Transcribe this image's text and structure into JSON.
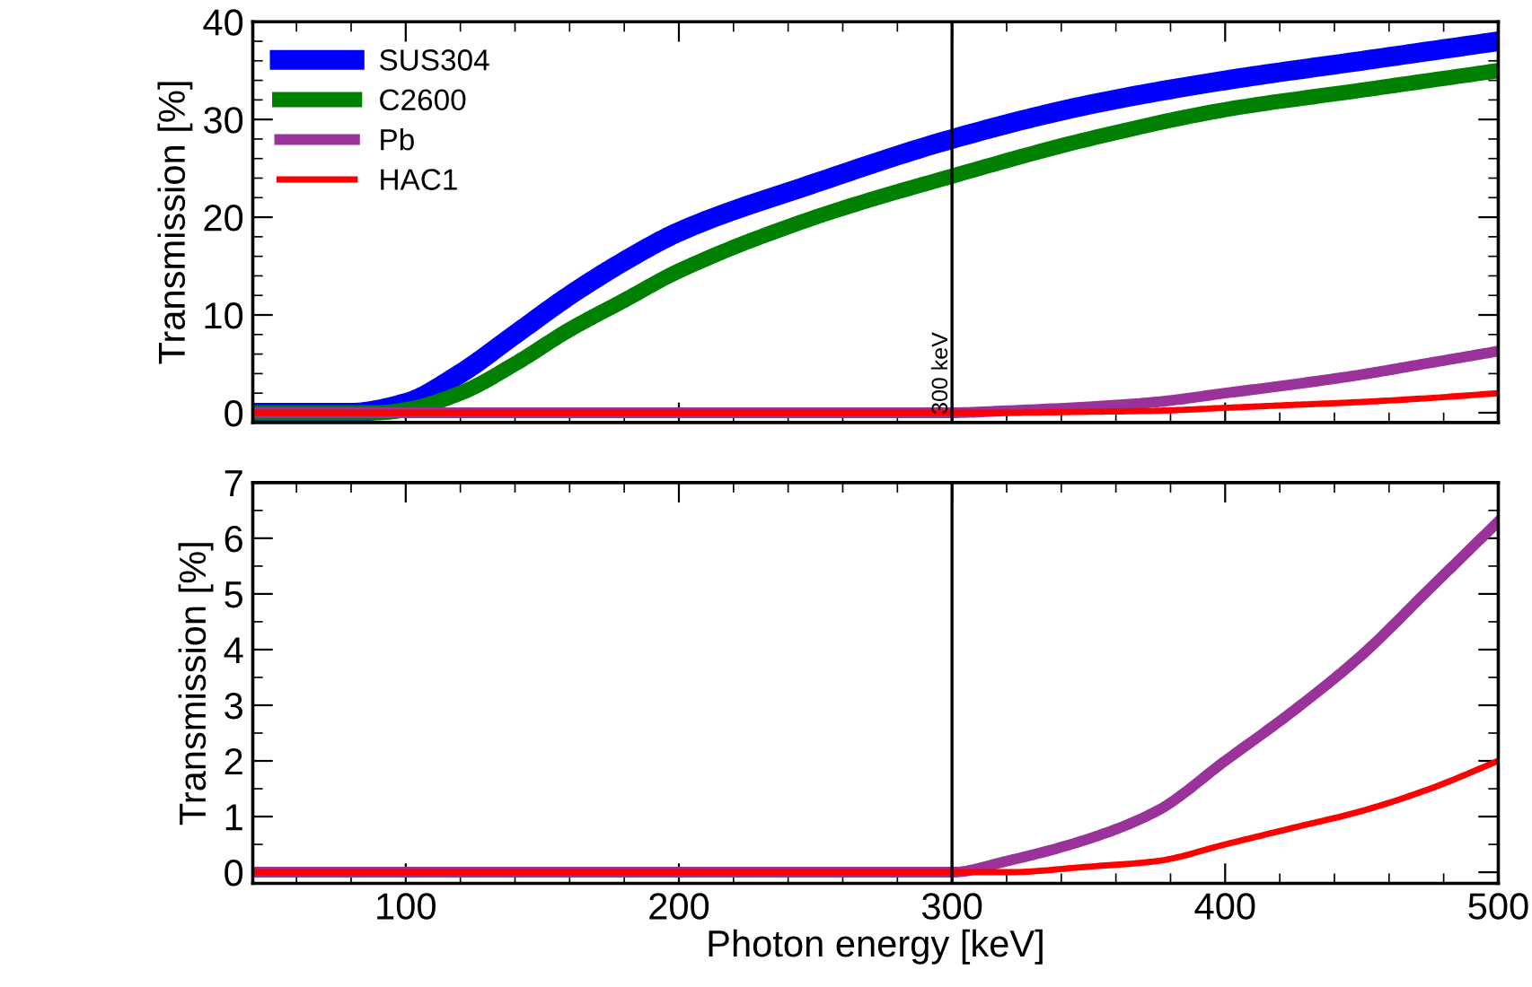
{
  "chart_data": [
    {
      "type": "line",
      "ylabel": "Transmission [%]",
      "xlim": [
        44,
        500
      ],
      "ylim": [
        -1,
        40
      ],
      "yticks": [
        0,
        10,
        20,
        30,
        40
      ],
      "xticks": [
        100,
        200,
        300,
        400,
        500
      ],
      "tick_labels": "y",
      "legend": "top left",
      "grid": false,
      "series": [
        {
          "name": "SUS304",
          "color": "#0000ff",
          "x": [
            44,
            80,
            100,
            120,
            140,
            160,
            180,
            200,
            250,
            300,
            350,
            400,
            450,
            500
          ],
          "values": [
            0,
            0,
            1,
            4,
            8,
            12,
            15.5,
            18.5,
            23.5,
            28,
            31.5,
            34,
            36,
            38
          ]
        },
        {
          "name": "C2600",
          "color": "#008000",
          "x": [
            44,
            90,
            100,
            120,
            140,
            160,
            180,
            200,
            250,
            300,
            350,
            400,
            450,
            500
          ],
          "values": [
            0,
            0,
            0.3,
            2,
            5,
            8.5,
            11.5,
            14.5,
            20,
            24.2,
            28,
            31,
            33,
            35
          ]
        },
        {
          "name": "Pb",
          "color": "#993399",
          "x": [
            44,
            300,
            320,
            350,
            375,
            400,
            425,
            450,
            475,
            500
          ],
          "values": [
            0,
            0,
            0.2,
            0.6,
            1.1,
            2.0,
            2.9,
            3.9,
            5.1,
            6.3
          ]
        },
        {
          "name": "HAC1",
          "color": "#ff0000",
          "x": [
            44,
            320,
            350,
            375,
            400,
            425,
            450,
            475,
            500
          ],
          "values": [
            0,
            0,
            0.1,
            0.2,
            0.5,
            0.8,
            1.1,
            1.5,
            2.0
          ]
        }
      ],
      "ref_lines": [
        {
          "axis": "x",
          "value": 300,
          "label": "300 keV",
          "color": "#000000"
        }
      ]
    },
    {
      "type": "line",
      "ylabel": "Transmission [%]",
      "xlabel": "Photon energy [keV]",
      "xlim": [
        44,
        500
      ],
      "ylim": [
        -0.2,
        7
      ],
      "yticks": [
        0,
        1,
        2,
        3,
        4,
        5,
        6,
        7
      ],
      "xticks": [
        100,
        200,
        300,
        400,
        500
      ],
      "grid": false,
      "series": [
        {
          "color": "#993399",
          "x": [
            44,
            300,
            320,
            350,
            375,
            400,
            425,
            450,
            475,
            500
          ],
          "values": [
            0,
            0,
            0.2,
            0.6,
            1.1,
            2.0,
            2.9,
            3.9,
            5.1,
            6.3
          ]
        },
        {
          "color": "#ff0000",
          "x": [
            44,
            320,
            350,
            375,
            400,
            425,
            450,
            475,
            500
          ],
          "values": [
            0,
            0,
            0.1,
            0.2,
            0.5,
            0.8,
            1.1,
            1.5,
            2.0
          ]
        }
      ],
      "ref_lines": [
        {
          "axis": "x",
          "value": 300,
          "color": "#000000"
        }
      ]
    }
  ]
}
